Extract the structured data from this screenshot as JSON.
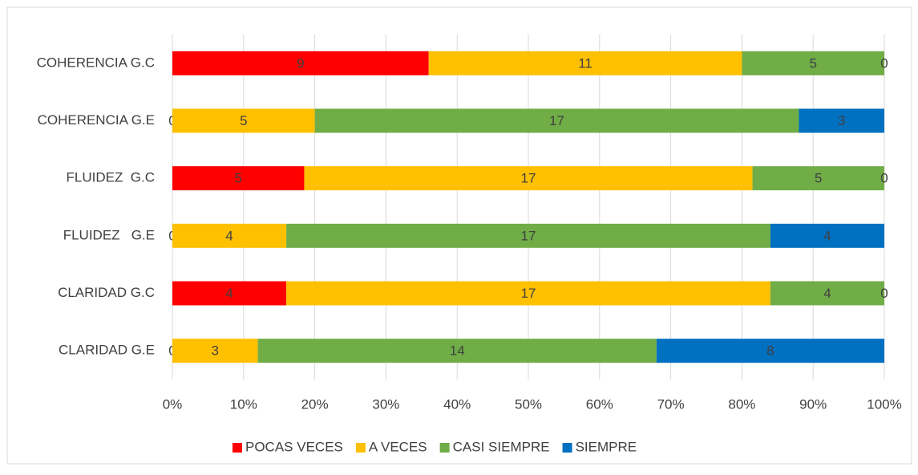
{
  "chart_data": {
    "type": "bar",
    "orientation": "horizontal",
    "stacking": "percent",
    "categories": [
      "COHERENCIA G.C",
      "COHERENCIA G.E",
      "FLUIDEZ  G.C",
      "FLUIDEZ   G.E",
      "CLARIDAD G.C",
      "CLARIDAD G.E"
    ],
    "series": [
      {
        "name": "POCAS VECES",
        "color": "#ff0000",
        "values": [
          9,
          0,
          5,
          0,
          4,
          0
        ]
      },
      {
        "name": "A VECES",
        "color": "#ffc000",
        "values": [
          11,
          5,
          17,
          4,
          17,
          3
        ]
      },
      {
        "name": "CASI SIEMPRE",
        "color": "#70ad47",
        "values": [
          5,
          17,
          5,
          17,
          4,
          14
        ]
      },
      {
        "name": "SIEMPRE",
        "color": "#0070c0",
        "values": [
          0,
          3,
          0,
          4,
          0,
          8
        ]
      }
    ],
    "xlim": [
      0,
      100
    ],
    "xticks": [
      {
        "value": 0,
        "label": "0%"
      },
      {
        "value": 10,
        "label": "10%"
      },
      {
        "value": 20,
        "label": "20%"
      },
      {
        "value": 30,
        "label": "30%"
      },
      {
        "value": 40,
        "label": "40%"
      },
      {
        "value": 50,
        "label": "50%"
      },
      {
        "value": 60,
        "label": "60%"
      },
      {
        "value": 70,
        "label": "70%"
      },
      {
        "value": 80,
        "label": "80%"
      },
      {
        "value": 90,
        "label": "90%"
      },
      {
        "value": 100,
        "label": "100%"
      }
    ],
    "grid": true,
    "legend": "bottom"
  }
}
